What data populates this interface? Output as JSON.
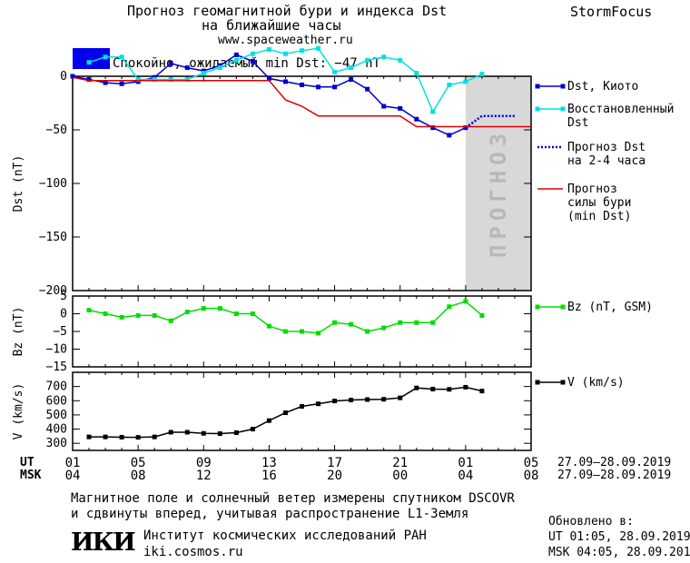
{
  "header": {
    "title_line1": "Прогноз геомагнитной бури и индекса Dst",
    "title_line2": "на ближайшие часы",
    "url": "www.spaceweather.ru",
    "brand": "StormFocus",
    "status_text": "Спокойно, ожидаемый min Dst: −47 nT",
    "status_color": "#0000ee"
  },
  "forecast_zone_label": "ПРОГНОЗ",
  "time_axis": {
    "ut_label": "UT",
    "msk_label": "MSK",
    "ut_ticks": [
      "01",
      "05",
      "09",
      "13",
      "17",
      "21",
      "01",
      "05"
    ],
    "msk_ticks": [
      "04",
      "08",
      "12",
      "16",
      "20",
      "00",
      "04",
      "08"
    ],
    "ut_range": "27.09–28.09.2019",
    "msk_range": "27.09–28.09.2019"
  },
  "footer": {
    "line1": "Магнитное поле и солнечный ветер измерены спутником DSCOVR",
    "line2": "и сдвинуты вперед, учитывая распространение L1-Земля",
    "institute": "Институт космических исследований РАН",
    "institute_url": "iki.cosmos.ru",
    "logo_text": "ИКИ",
    "updated_label": "Обновлено в:",
    "updated_ut": "UT  01:05, 28.09.2019",
    "updated_msk": "MSK 04:05, 28.09.2019"
  },
  "chart_data": [
    {
      "type": "line",
      "ylabel": "Dst (nT)",
      "ylim": [
        -200,
        0
      ],
      "yticks": [
        0,
        -50,
        -100,
        -150,
        -200
      ],
      "xlim": [
        0,
        28
      ],
      "series": [
        {
          "name": "Dst, Киото",
          "color": "#0000cc",
          "marker": "square",
          "x": [
            0,
            1,
            2,
            3,
            4,
            5,
            6,
            7,
            8,
            9,
            10,
            11,
            12,
            13,
            14,
            15,
            16,
            17,
            18,
            19,
            20,
            21,
            22,
            23,
            24
          ],
          "y": [
            0,
            -3,
            -6,
            -7,
            -5,
            -1,
            12,
            8,
            5,
            10,
            20,
            14,
            -2,
            -5,
            -8,
            -10,
            -10,
            -3,
            -12,
            -28,
            -30,
            -40,
            -48,
            -55,
            -48
          ]
        },
        {
          "name": "Восстановленный Dst",
          "color": "#00e0e0",
          "marker": "square",
          "x": [
            1,
            2,
            3,
            4,
            5,
            6,
            7,
            8,
            9,
            10,
            11,
            12,
            13,
            14,
            15,
            16,
            17,
            18,
            19,
            20,
            21,
            22,
            23,
            24,
            25
          ],
          "y": [
            13,
            18,
            18,
            -3,
            -3,
            -3,
            -3,
            3,
            8,
            15,
            21,
            25,
            21,
            24,
            26,
            4,
            8,
            15,
            18,
            15,
            3,
            -33,
            -8,
            -5,
            2
          ]
        },
        {
          "name": "Прогноз Dst на 2-4 часа",
          "color": "#0000cc",
          "style": "dotted",
          "x": [
            24,
            25,
            27
          ],
          "y": [
            -48,
            -37,
            -37
          ]
        },
        {
          "name": "Прогноз силы бури (min Dst)",
          "color": "#dd0000",
          "x": [
            0,
            1,
            11,
            12,
            13,
            14,
            15,
            16,
            17,
            18,
            19,
            20,
            21,
            28
          ],
          "y": [
            -1,
            -4,
            -4,
            -4,
            -22,
            -28,
            -37,
            -37,
            -37,
            -37,
            -37,
            -37,
            -47,
            -47
          ]
        }
      ],
      "forecast_start_x": 24,
      "legend_placement": "right"
    },
    {
      "type": "line",
      "ylabel": "Bz (nT)",
      "ylim": [
        -15,
        5
      ],
      "yticks": [
        5,
        0,
        -5,
        -10,
        -15
      ],
      "xlim": [
        0,
        28
      ],
      "series": [
        {
          "name": "Bz (nT, GSM)",
          "color": "#00dd00",
          "marker": "square",
          "x": [
            1,
            2,
            3,
            4,
            5,
            6,
            7,
            8,
            9,
            10,
            11,
            12,
            13,
            14,
            15,
            16,
            17,
            18,
            19,
            20,
            21,
            22,
            23,
            24,
            25
          ],
          "y": [
            1,
            0,
            -1,
            -0.5,
            -0.5,
            -2,
            0.5,
            1.5,
            1.5,
            0,
            0,
            -3.5,
            -5,
            -5,
            -5.5,
            -2.5,
            -3,
            -5,
            -4,
            -2.5,
            -2.5,
            -2.5,
            2,
            3.5,
            -0.5
          ]
        }
      ],
      "legend_placement": "right"
    },
    {
      "type": "line",
      "ylabel": "V (km/s)",
      "ylim": [
        250,
        800
      ],
      "yticks": [
        700,
        600,
        500,
        400,
        300
      ],
      "xlim": [
        0,
        28
      ],
      "series": [
        {
          "name": "V (km/s)",
          "color": "#000000",
          "marker": "square",
          "x": [
            1,
            2,
            3,
            4,
            5,
            6,
            7,
            8,
            9,
            10,
            11,
            12,
            13,
            14,
            15,
            16,
            17,
            18,
            19,
            20,
            21,
            22,
            23,
            24,
            25
          ],
          "y": [
            345,
            345,
            343,
            342,
            345,
            378,
            378,
            370,
            368,
            375,
            400,
            460,
            515,
            560,
            578,
            598,
            605,
            608,
            610,
            620,
            690,
            682,
            680,
            695,
            668
          ]
        }
      ],
      "legend_placement": "right"
    }
  ]
}
